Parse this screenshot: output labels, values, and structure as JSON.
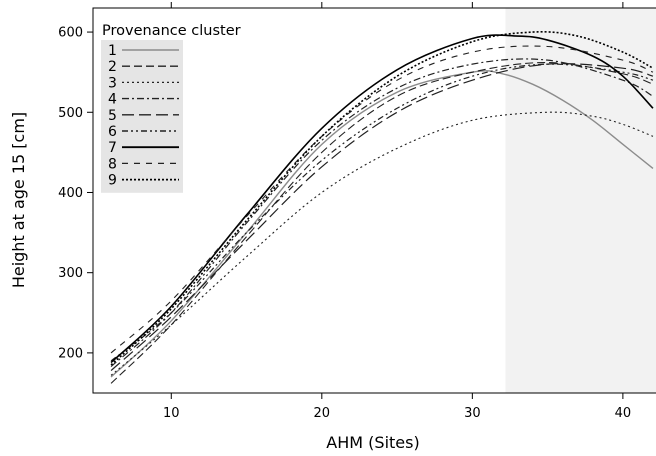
{
  "chart_data": {
    "type": "line",
    "xlabel": "AHM (Sites)",
    "ylabel": "Height at age 15 [cm]",
    "xlim": [
      4.8,
      42.2
    ],
    "ylim": [
      150,
      630
    ],
    "x_ticks": [
      10,
      20,
      30,
      40
    ],
    "y_ticks": [
      200,
      300,
      400,
      500,
      600
    ],
    "shaded_region": {
      "x_from": 32.2,
      "x_to": 42.2,
      "color": "#f2f2f2"
    },
    "legend": {
      "title": "Provenance cluster",
      "position": "top-left"
    },
    "series": [
      {
        "name": "1",
        "color": "#8c8c8c",
        "dash": "",
        "width": 1.4,
        "x": [
          6,
          10,
          15,
          20,
          25,
          30,
          32,
          34,
          36,
          38,
          40,
          42
        ],
        "y": [
          170,
          240,
          350,
          460,
          525,
          550,
          548,
          535,
          515,
          490,
          460,
          430
        ]
      },
      {
        "name": "2",
        "color": "#222222",
        "dash": "8,4",
        "width": 1.1,
        "x": [
          6,
          10,
          15,
          20,
          25,
          30,
          35,
          40,
          42
        ],
        "y": [
          162,
          235,
          345,
          450,
          520,
          550,
          562,
          548,
          535
        ]
      },
      {
        "name": "3",
        "color": "#222222",
        "dash": "2,3",
        "width": 1.1,
        "x": [
          6,
          10,
          15,
          20,
          25,
          30,
          35,
          38,
          40,
          42
        ],
        "y": [
          172,
          235,
          320,
          400,
          455,
          490,
          500,
          495,
          485,
          470
        ]
      },
      {
        "name": "4",
        "color": "#222222",
        "dash": "7,3,2,3",
        "width": 1.2,
        "x": [
          6,
          10,
          15,
          20,
          25,
          30,
          35,
          40,
          42
        ],
        "y": [
          183,
          250,
          362,
          465,
          530,
          560,
          565,
          540,
          520
        ]
      },
      {
        "name": "5",
        "color": "#222222",
        "dash": "12,5",
        "width": 1.2,
        "x": [
          6,
          10,
          15,
          20,
          25,
          30,
          35,
          40,
          42
        ],
        "y": [
          178,
          245,
          340,
          432,
          500,
          540,
          560,
          555,
          545
        ]
      },
      {
        "name": "6",
        "color": "#222222",
        "dash": "6,3,2,3,2,3",
        "width": 1.2,
        "x": [
          6,
          10,
          15,
          20,
          25,
          30,
          35,
          40,
          42
        ],
        "y": [
          190,
          250,
          350,
          440,
          505,
          545,
          560,
          550,
          540
        ]
      },
      {
        "name": "7",
        "color": "#000000",
        "dash": "",
        "width": 1.6,
        "x": [
          6,
          10,
          15,
          20,
          25,
          30,
          33,
          35,
          38,
          40,
          42
        ],
        "y": [
          188,
          258,
          372,
          480,
          553,
          592,
          595,
          590,
          570,
          545,
          505
        ]
      },
      {
        "name": "8",
        "color": "#222222",
        "dash": "6,6",
        "width": 1.1,
        "x": [
          6,
          10,
          15,
          20,
          25,
          30,
          35,
          40,
          42
        ],
        "y": [
          200,
          265,
          370,
          470,
          540,
          575,
          582,
          565,
          550
        ]
      },
      {
        "name": "9",
        "color": "#000000",
        "dash": "2,2",
        "width": 1.6,
        "x": [
          6,
          10,
          15,
          20,
          25,
          30,
          34,
          37,
          40,
          42
        ],
        "y": [
          185,
          255,
          365,
          470,
          545,
          588,
          600,
          595,
          575,
          555
        ]
      }
    ]
  }
}
